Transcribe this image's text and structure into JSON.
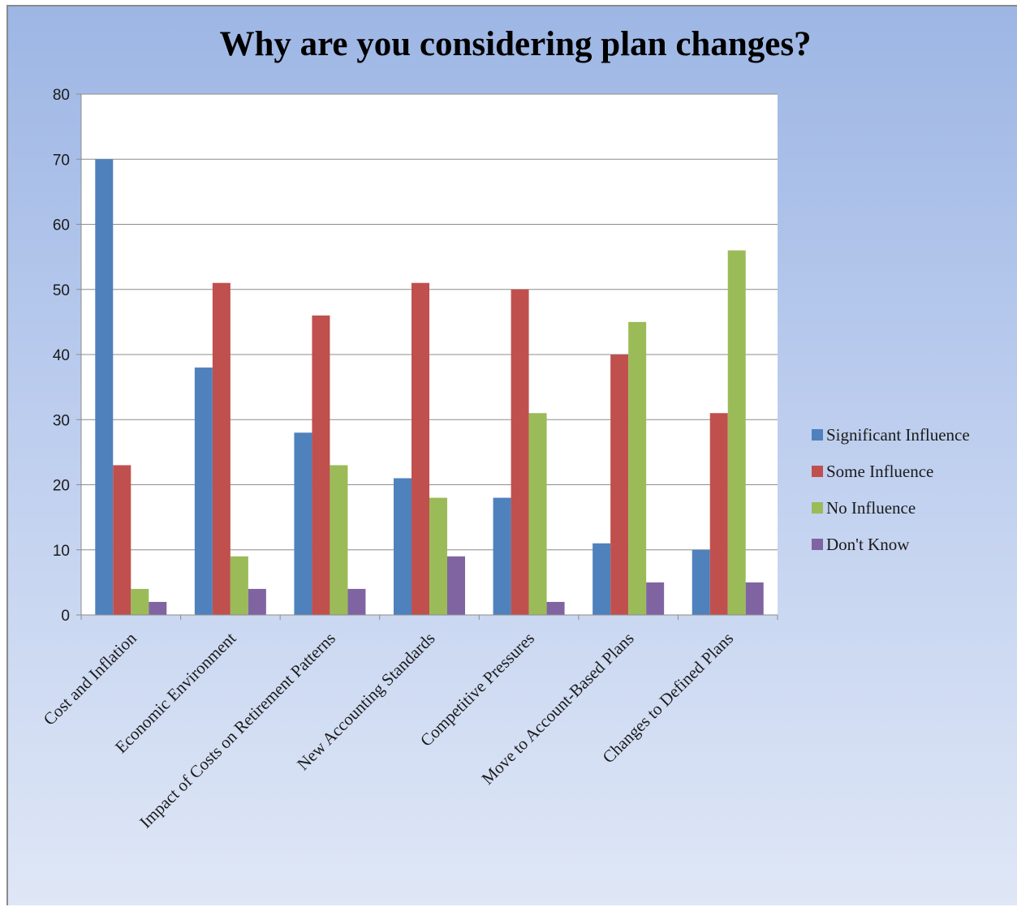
{
  "chart_data": {
    "type": "bar",
    "title": "Why are you considering plan changes?",
    "xlabel": "",
    "ylabel": "",
    "ylim": [
      0,
      80
    ],
    "yticks": [
      "0",
      "10",
      "20",
      "30",
      "40",
      "50",
      "60",
      "70",
      "80"
    ],
    "grid": true,
    "legend_position": "right",
    "categories": [
      "Cost and Inflation",
      "Economic Environment",
      "Impact of Costs on Retirement Patterns",
      "New Accounting Standards",
      "Competitive Pressures",
      "Move to Account-Based Plans",
      "Changes to Defined Plans"
    ],
    "series": [
      {
        "name": "Significant Influence",
        "color": "#4f81bd",
        "values": [
          70,
          38,
          28,
          21,
          18,
          11,
          10
        ]
      },
      {
        "name": "Some Influence",
        "color": "#c0504d",
        "values": [
          23,
          51,
          46,
          51,
          50,
          40,
          31
        ]
      },
      {
        "name": "No Influence",
        "color": "#9bbb59",
        "values": [
          4,
          9,
          23,
          18,
          31,
          45,
          56
        ]
      },
      {
        "name": "Don't Know",
        "color": "#8064a2",
        "values": [
          2,
          4,
          4,
          9,
          2,
          5,
          5
        ]
      }
    ]
  }
}
